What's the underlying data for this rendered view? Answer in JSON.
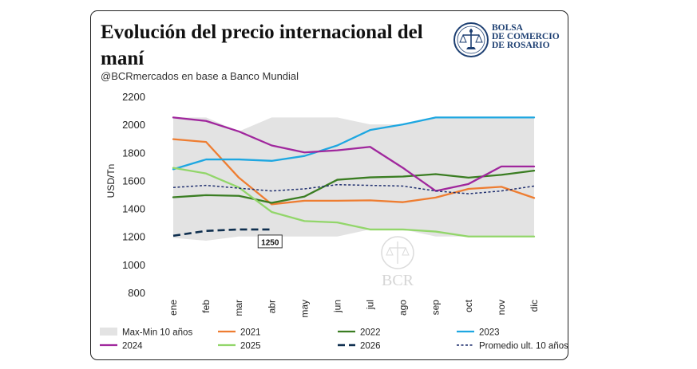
{
  "header": {
    "title": "Evolución del precio internacional del maní",
    "subtitle": "@BCRmercados en base a Banco Mundial",
    "logo_lines": [
      "BOLSA",
      "DE COMERCIO",
      "DE ROSARIO"
    ],
    "watermark": "BCR"
  },
  "colors": {
    "band": "#e3e3e3",
    "s2021": "#ee7d31",
    "s2022": "#3a7d22",
    "s2023": "#1ea7e1",
    "s2024": "#a0279d",
    "s2025": "#92d66a",
    "s2026": "#0f2f4f",
    "avg": "#1f2f6f",
    "brand": "#1d3f72"
  },
  "chart_data": {
    "type": "line",
    "categories": [
      "ene",
      "feb",
      "mar",
      "abr",
      "may",
      "jun",
      "jul",
      "ago",
      "sep",
      "oct",
      "nov",
      "dic"
    ],
    "ylabel": "USD/Tn",
    "xlabel": "",
    "ylim": [
      800,
      2200
    ],
    "yticks": [
      800,
      1000,
      1200,
      1400,
      1600,
      1800,
      2000,
      2200
    ],
    "grid": false,
    "band": {
      "name": "Max-Min 10 años",
      "max": [
        2050,
        2050,
        1950,
        2050,
        2050,
        2050,
        2000,
        2000,
        2050,
        2050,
        2050,
        2050
      ],
      "min": [
        1190,
        1170,
        1200,
        1200,
        1200,
        1200,
        1250,
        1250,
        1200,
        1200,
        1200,
        1200
      ]
    },
    "series": [
      {
        "name": "2021",
        "key": "s2021",
        "values": [
          1895,
          1875,
          1620,
          1430,
          1455,
          1455,
          1458,
          1445,
          1478,
          1540,
          1555,
          1475
        ]
      },
      {
        "name": "2022",
        "key": "s2022",
        "values": [
          1480,
          1495,
          1490,
          1440,
          1485,
          1605,
          1622,
          1628,
          1645,
          1620,
          1640,
          1670
        ]
      },
      {
        "name": "2023",
        "key": "s2023",
        "values": [
          1680,
          1750,
          1750,
          1740,
          1775,
          1850,
          1960,
          2000,
          2050,
          2050,
          2050,
          2050
        ]
      },
      {
        "name": "2024",
        "key": "s2024",
        "values": [
          2050,
          2025,
          1950,
          1850,
          1800,
          1815,
          1840,
          1690,
          1525,
          1575,
          1700,
          1700
        ]
      },
      {
        "name": "2025",
        "key": "s2025",
        "values": [
          1690,
          1650,
          1550,
          1375,
          1310,
          1300,
          1250,
          1250,
          1235,
          1200,
          1200,
          1200
        ]
      },
      {
        "name": "2026",
        "key": "s2026",
        "dash": "9,5",
        "width": 2.6,
        "values": [
          1205,
          1240,
          1250,
          1250,
          null,
          null,
          null,
          null,
          null,
          null,
          null,
          null
        ]
      },
      {
        "name": "Promedio ult. 10 años",
        "key": "avg",
        "dash": "3,2.5",
        "width": 1.5,
        "values": [
          1550,
          1565,
          1545,
          1525,
          1540,
          1570,
          1565,
          1560,
          1525,
          1505,
          1525,
          1560
        ]
      }
    ],
    "annotations": [
      {
        "text": "1250",
        "series": "2026",
        "index": 3
      }
    ],
    "legend": {
      "placement": "bottom",
      "items": [
        "Max-Min 10 años",
        "2021",
        "2022",
        "2023",
        "2024",
        "2025",
        "2026",
        "Promedio ult. 10 años"
      ]
    }
  }
}
